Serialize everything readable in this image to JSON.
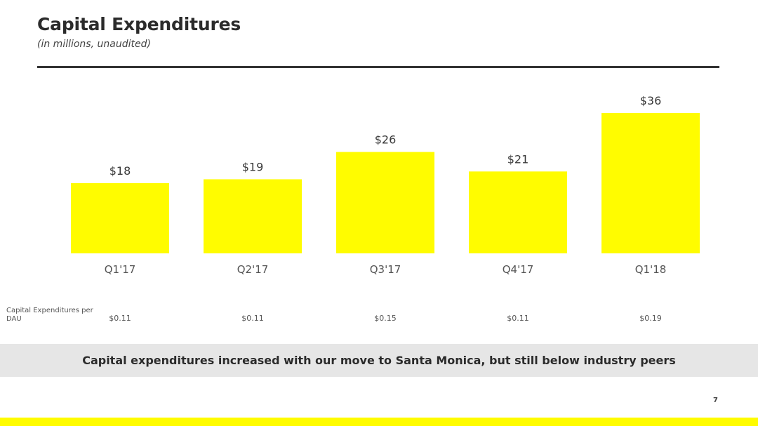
{
  "header": {
    "title": "Capital Expenditures",
    "subtitle": "(in millions, unaudited)"
  },
  "chart_data": {
    "type": "bar",
    "categories": [
      "Q1'17",
      "Q2'17",
      "Q3'17",
      "Q4'17",
      "Q1'18"
    ],
    "values": [
      18,
      19,
      26,
      21,
      36
    ],
    "data_labels": [
      "$18",
      "$19",
      "$26",
      "$21",
      "$36"
    ],
    "ylim": [
      0,
      36
    ],
    "grid": false,
    "bar_color": "#FFFC00"
  },
  "per_dau": {
    "label": "Capital Expenditures per DAU",
    "values": [
      "$0.11",
      "$0.11",
      "$0.15",
      "$0.11",
      "$0.19"
    ]
  },
  "banner": {
    "text": "Capital expenditures increased with our move to Santa Monica, but still below industry peers"
  },
  "footer": {
    "page_number": "7"
  },
  "colors": {
    "brand_yellow": "#FFFC00",
    "banner_bg": "#E6E6E6",
    "text_dark": "#2B2B2B"
  }
}
